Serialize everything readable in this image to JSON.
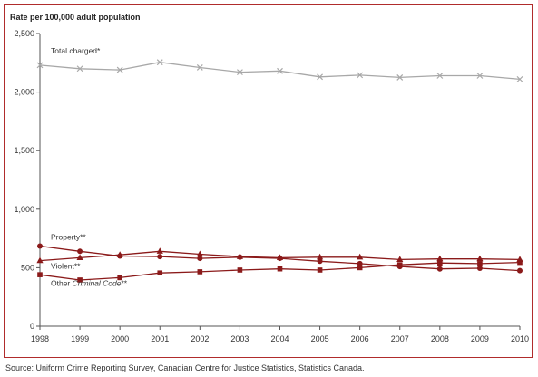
{
  "source_note": "Source:  Uniform Crime Reporting Survey, Canadian Centre for Justice Statistics, Statistics Canada.",
  "colors": {
    "border": "#b02c2c",
    "dark_red": "#8b1a1a",
    "gray": "#a8a8a8",
    "axis": "#555555"
  },
  "chart_data": {
    "type": "line",
    "ylabel": "Rate per 100,000 adult population",
    "xlabel": "",
    "x": [
      "1998",
      "1999",
      "2000",
      "2001",
      "2002",
      "2003",
      "2004",
      "2005",
      "2006",
      "2007",
      "2008",
      "2009",
      "2010"
    ],
    "ylim": [
      0,
      2500
    ],
    "yticks": [
      0,
      500,
      1000,
      1500,
      2000,
      2500
    ],
    "ytick_labels": [
      "0",
      "500",
      "1,000",
      "1,500",
      "2,000",
      "2,500"
    ],
    "grid": false,
    "series": [
      {
        "name": "Total charged*",
        "marker": "x",
        "color": "#a8a8a8",
        "values": [
          2230,
          2200,
          2190,
          2255,
          2210,
          2170,
          2180,
          2130,
          2145,
          2125,
          2140,
          2140,
          2110
        ]
      },
      {
        "name": "Property**",
        "marker": "circle",
        "color": "#8b1a1a",
        "values": [
          685,
          640,
          600,
          595,
          580,
          590,
          580,
          555,
          535,
          510,
          490,
          495,
          475
        ]
      },
      {
        "name": "Violent**",
        "marker": "triangle",
        "color": "#8b1a1a",
        "values": [
          560,
          585,
          610,
          640,
          615,
          595,
          585,
          590,
          590,
          570,
          575,
          575,
          570
        ]
      },
      {
        "name": "Other Criminal Code**",
        "marker": "square",
        "color": "#8b1a1a",
        "values": [
          440,
          395,
          415,
          455,
          465,
          480,
          490,
          480,
          500,
          525,
          540,
          535,
          545
        ]
      }
    ]
  }
}
